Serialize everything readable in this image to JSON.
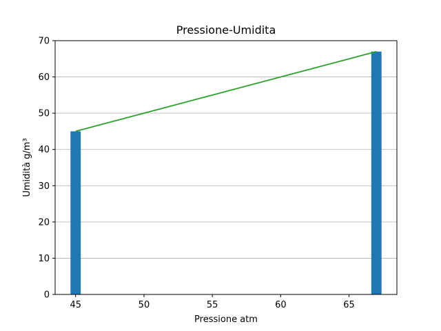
{
  "chart_data": {
    "type": "bar",
    "title": "Pressione-Umidita",
    "xlabel": "Pressione atm",
    "ylabel": "Umidità g/m³",
    "xlim": [
      43.5,
      68.5
    ],
    "ylim": [
      0,
      70
    ],
    "xticks": [
      45,
      50,
      55,
      60,
      65
    ],
    "yticks": [
      0,
      10,
      20,
      30,
      40,
      50,
      60,
      70
    ],
    "grid": "y",
    "bar_width": 0.75,
    "bar_color": "#1f77b4",
    "line_color": "#2ca02c",
    "points": [
      {
        "x": 45,
        "y": 45
      },
      {
        "x": 67,
        "y": 67
      }
    ]
  }
}
